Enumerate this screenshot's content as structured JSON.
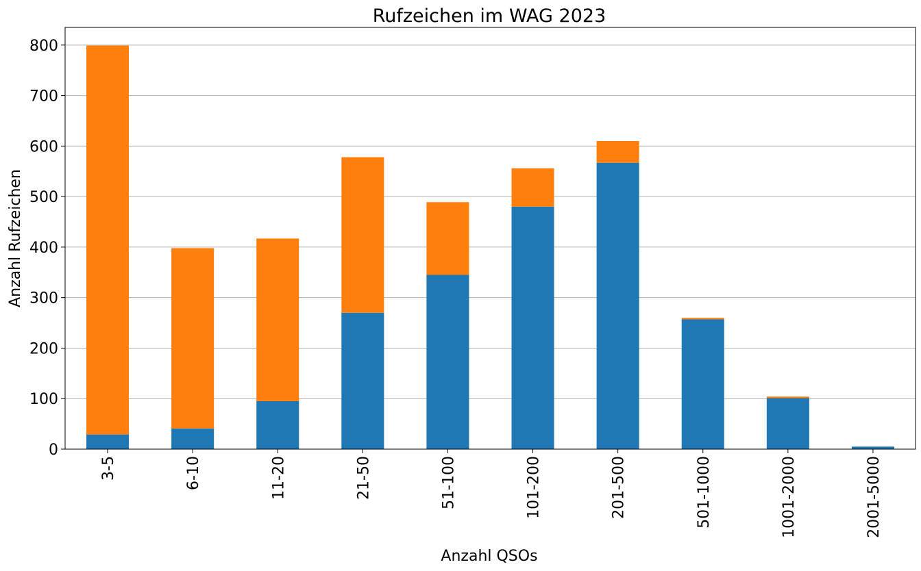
{
  "chart_data": {
    "type": "bar",
    "stacked": true,
    "title": "Rufzeichen im WAG 2023",
    "xlabel": "Anzahl QSOs",
    "ylabel": "Anzahl Rufzeichen",
    "categories": [
      "3-5",
      "6-10",
      "11-20",
      "21-50",
      "51-100",
      "101-200",
      "201-500",
      "501-1000",
      "1001-2000",
      "2001-5000"
    ],
    "series": [
      {
        "color": "#1f77b4",
        "values": [
          29,
          41,
          95,
          270,
          345,
          480,
          567,
          257,
          101,
          5
        ]
      },
      {
        "color": "#ff7f0e",
        "values": [
          770,
          357,
          322,
          308,
          144,
          76,
          43,
          3,
          3,
          0
        ]
      }
    ],
    "ylim": [
      0,
      835
    ],
    "yticks": [
      0,
      100,
      200,
      300,
      400,
      500,
      600,
      700,
      800
    ],
    "grid": "y",
    "legend": "none"
  }
}
